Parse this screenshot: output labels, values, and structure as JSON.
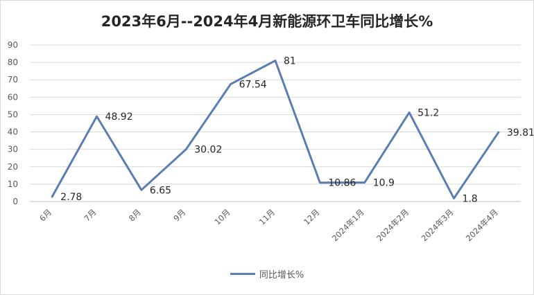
{
  "chart_data": {
    "type": "line",
    "title": "2023年6月--2024年4月新能源环卫车同比增长%",
    "categories": [
      "6月",
      "7月",
      "8月",
      "9月",
      "10月",
      "11月",
      "12月",
      "2024年1月",
      "2024年2月",
      "2024年3月",
      "2024年4月"
    ],
    "series": [
      {
        "name": "同比增长%",
        "values": [
          2.78,
          48.92,
          6.65,
          30.02,
          67.54,
          81,
          10.86,
          10.9,
          51.2,
          1.8,
          39.81
        ],
        "labels": [
          "2.78",
          "48.92",
          "6.65",
          "30.02",
          "67.54",
          "81",
          "10.86",
          "10.9",
          "51.2",
          "1.8",
          "39.81"
        ],
        "color": "#5b7db1"
      }
    ],
    "ylim": [
      0,
      90
    ],
    "yticks": [
      0,
      10,
      20,
      30,
      40,
      50,
      60,
      70,
      80,
      90
    ],
    "grid": "horizontal",
    "legend_position": "bottom"
  }
}
